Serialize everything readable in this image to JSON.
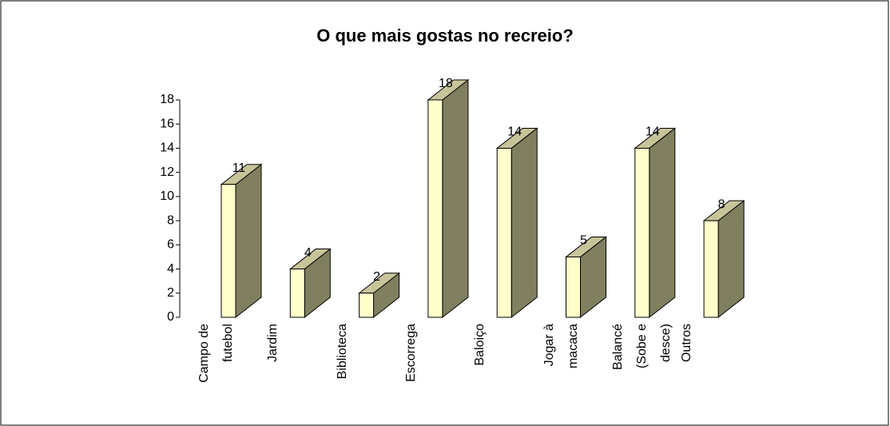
{
  "chart_data": {
    "type": "bar",
    "title": "O que mais gostas no recreio?",
    "categories": [
      "Campo de futebol",
      "Jardim",
      "Biblioteca",
      "Escorrega",
      "Baloiço",
      "Jogar à macaca",
      "Balancé (Sobe e desce)",
      "Outros"
    ],
    "values": [
      11,
      4,
      2,
      18,
      14,
      5,
      14,
      8
    ],
    "color": "#ffffcc",
    "ylim": [
      0,
      18
    ],
    "yticks": [
      0,
      2,
      4,
      6,
      8,
      10,
      12,
      14,
      16,
      18
    ]
  }
}
